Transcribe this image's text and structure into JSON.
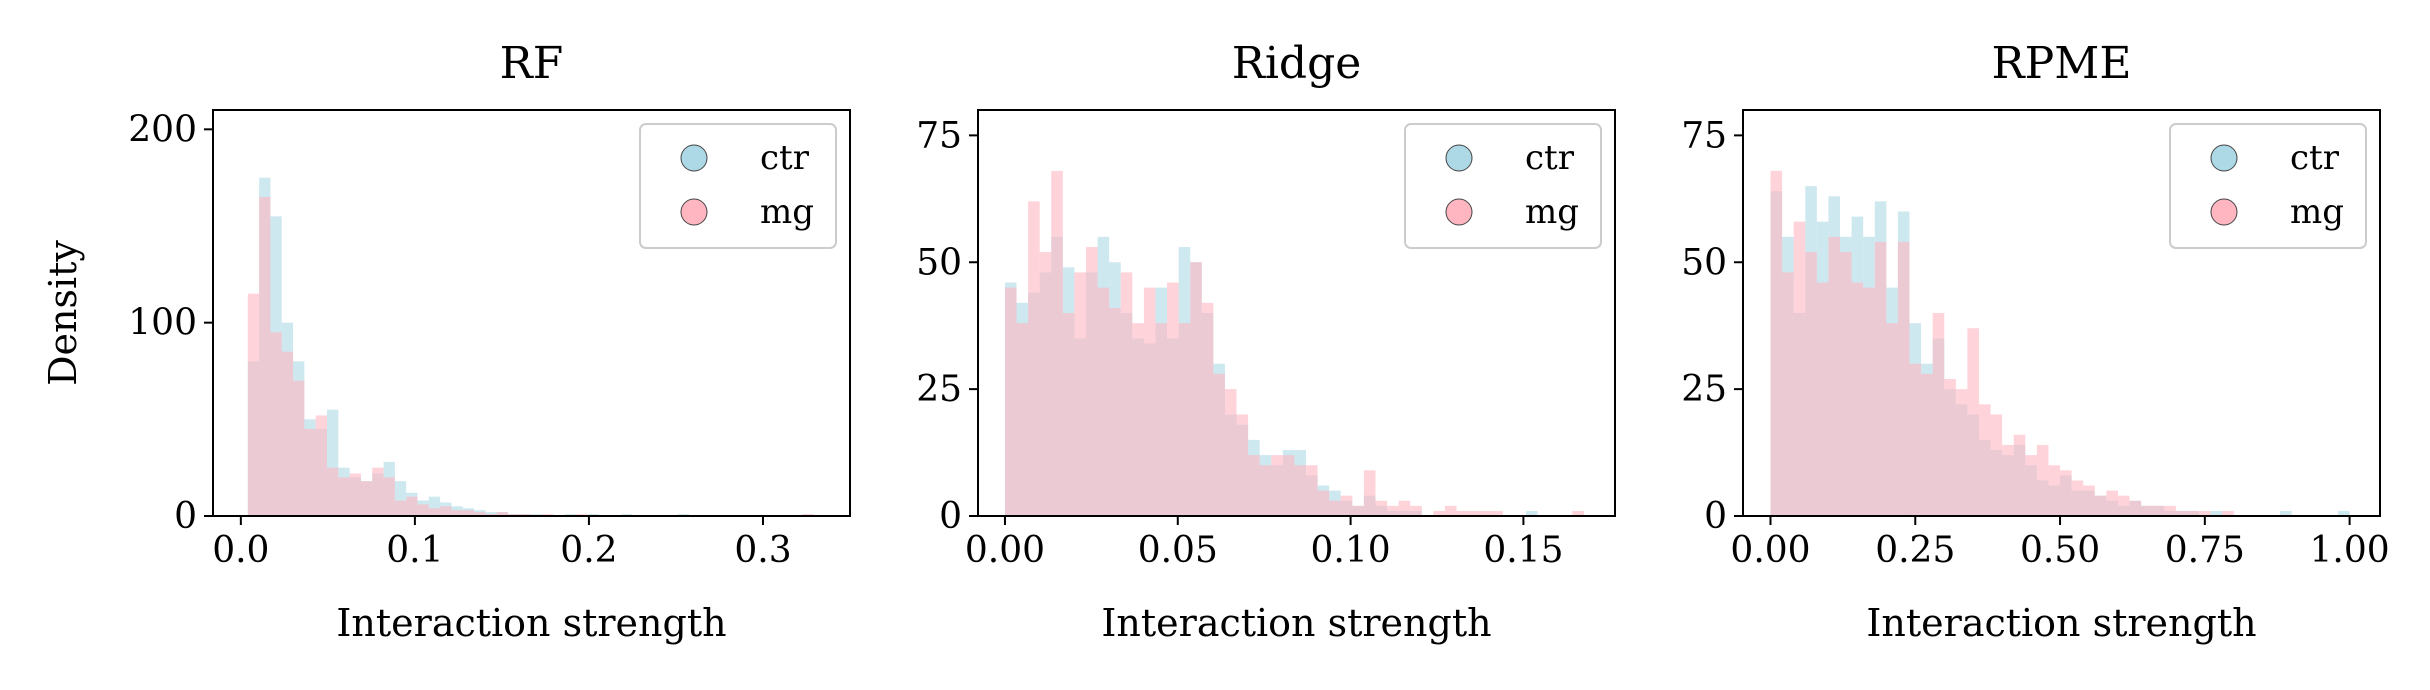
{
  "chart_data": [
    {
      "type": "histogram",
      "title": "RF",
      "xlabel": "Interaction strength",
      "ylabel": "Density",
      "xlim": [
        -0.016,
        0.35
      ],
      "ylim": [
        0,
        210
      ],
      "xticks": [
        0.0,
        0.1,
        0.2,
        0.3
      ],
      "xtick_labels": [
        "0.0",
        "0.1",
        "0.2",
        "0.3"
      ],
      "yticks": [
        0,
        100,
        200
      ],
      "ytick_labels": [
        "0",
        "100",
        "200"
      ],
      "legend": {
        "placement": "upper right",
        "entries": [
          "ctr",
          "mg"
        ]
      },
      "series": [
        {
          "name": "ctr",
          "color": "#add8e6",
          "bin_start": 0.004,
          "bin_width": 0.0065,
          "values": [
            80,
            175,
            155,
            100,
            80,
            50,
            45,
            55,
            25,
            20,
            18,
            22,
            28,
            18,
            12,
            8,
            10,
            7,
            5,
            4,
            3,
            2,
            2,
            1,
            1,
            1,
            0,
            0,
            1,
            0,
            1,
            0,
            0,
            1,
            0,
            0,
            0,
            0,
            1,
            0,
            0,
            0,
            0,
            0,
            0,
            0,
            0,
            0,
            0,
            0
          ]
        },
        {
          "name": "mg",
          "color": "#ffb6c1",
          "bin_start": 0.004,
          "bin_width": 0.0065,
          "values": [
            115,
            165,
            95,
            85,
            70,
            45,
            52,
            25,
            20,
            22,
            18,
            25,
            20,
            8,
            10,
            6,
            4,
            5,
            3,
            3,
            2,
            1,
            2,
            1,
            1,
            0,
            1,
            0,
            0,
            1,
            0,
            0,
            0,
            0,
            0,
            0,
            0,
            0,
            0,
            0,
            0,
            0,
            0,
            0,
            0,
            0,
            0,
            0,
            0,
            1
          ]
        }
      ]
    },
    {
      "type": "histogram",
      "title": "Ridge",
      "xlabel": "Interaction strength",
      "ylabel": "",
      "xlim": [
        -0.0078,
        0.1765
      ],
      "ylim": [
        0,
        80
      ],
      "xticks": [
        0.0,
        0.05,
        0.1,
        0.15
      ],
      "xtick_labels": [
        "0.00",
        "0.05",
        "0.10",
        "0.15"
      ],
      "yticks": [
        0,
        25,
        50,
        75
      ],
      "ytick_labels": [
        "0",
        "25",
        "50",
        "75"
      ],
      "legend": {
        "placement": "upper right",
        "entries": [
          "ctr",
          "mg"
        ]
      },
      "series": [
        {
          "name": "ctr",
          "color": "#add8e6",
          "bin_start": 0.0,
          "bin_width": 0.00335,
          "values": [
            46,
            42,
            44,
            48,
            55,
            49,
            35,
            48,
            55,
            50,
            40,
            35,
            34,
            45,
            35,
            53,
            50,
            40,
            30,
            20,
            18,
            15,
            12,
            10,
            13,
            13,
            8,
            6,
            5,
            3,
            2,
            4,
            2,
            1,
            1,
            1,
            0,
            0,
            0,
            0,
            0,
            0,
            0,
            0,
            0,
            1,
            0,
            0,
            0,
            0
          ]
        },
        {
          "name": "mg",
          "color": "#ffb6c1",
          "bin_start": 0.0,
          "bin_width": 0.00335,
          "values": [
            45,
            38,
            62,
            52,
            68,
            40,
            48,
            53,
            45,
            41,
            48,
            38,
            45,
            38,
            46,
            38,
            50,
            42,
            28,
            25,
            20,
            12,
            10,
            12,
            12,
            10,
            10,
            5,
            3,
            4,
            2,
            9,
            3,
            2,
            3,
            2,
            0,
            1,
            2,
            1,
            1,
            1,
            1,
            0,
            0,
            0,
            0,
            0,
            0,
            1
          ]
        }
      ]
    },
    {
      "type": "histogram",
      "title": "RPME",
      "xlabel": "Interaction strength",
      "ylabel": "",
      "xlim": [
        -0.0475,
        1.0525
      ],
      "ylim": [
        0,
        80
      ],
      "xticks": [
        0.0,
        0.25,
        0.5,
        0.75,
        1.0
      ],
      "xtick_labels": [
        "0.00",
        "0.25",
        "0.50",
        "0.75",
        "1.00"
      ],
      "yticks": [
        0,
        25,
        50,
        75
      ],
      "ytick_labels": [
        "0",
        "25",
        "50",
        "75"
      ],
      "legend": {
        "placement": "upper right",
        "entries": [
          "ctr",
          "mg"
        ]
      },
      "series": [
        {
          "name": "ctr",
          "color": "#add8e6",
          "bin_start": 0.0,
          "bin_width": 0.02,
          "values": [
            64,
            55,
            40,
            65,
            58,
            63,
            55,
            59,
            55,
            62,
            45,
            60,
            38,
            30,
            35,
            25,
            22,
            20,
            15,
            13,
            12,
            14,
            10,
            7,
            6,
            8,
            5,
            5,
            4,
            3,
            2,
            3,
            2,
            2,
            1,
            1,
            1,
            0,
            1,
            0,
            0,
            0,
            0,
            0,
            1,
            0,
            0,
            0,
            0,
            1
          ]
        },
        {
          "name": "mg",
          "color": "#ffb6c1",
          "bin_start": 0.0,
          "bin_width": 0.02,
          "values": [
            68,
            48,
            58,
            52,
            46,
            55,
            52,
            46,
            45,
            54,
            38,
            54,
            30,
            28,
            40,
            27,
            25,
            37,
            22,
            20,
            14,
            16,
            12,
            14,
            10,
            9,
            7,
            6,
            4,
            5,
            4,
            3,
            2,
            2,
            2,
            1,
            1,
            1,
            0,
            1,
            0,
            0,
            0,
            0,
            0,
            0,
            0,
            0,
            0,
            0
          ]
        }
      ]
    }
  ]
}
